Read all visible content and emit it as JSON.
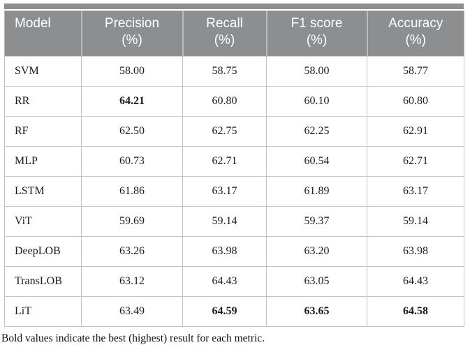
{
  "colors": {
    "header_bg": "#8c8e90",
    "header_separator": "#b9bbbd",
    "cell_border": "#c2c2c2",
    "header_text": "#ffffff",
    "body_text": "#1c1c1c"
  },
  "table": {
    "columns": [
      {
        "label": "Model",
        "unit": ""
      },
      {
        "label": "Precision",
        "unit": "(%)"
      },
      {
        "label": "Recall",
        "unit": "(%)"
      },
      {
        "label": "F1 score",
        "unit": "(%)"
      },
      {
        "label": "Accuracy",
        "unit": "(%)"
      }
    ],
    "rows": [
      {
        "model": "SVM",
        "values": [
          "58.00",
          "58.75",
          "58.00",
          "58.77"
        ],
        "bold": [
          false,
          false,
          false,
          false
        ]
      },
      {
        "model": "RR",
        "values": [
          "64.21",
          "60.80",
          "60.10",
          "60.80"
        ],
        "bold": [
          true,
          false,
          false,
          false
        ]
      },
      {
        "model": "RF",
        "values": [
          "62.50",
          "62.75",
          "62.25",
          "62.91"
        ],
        "bold": [
          false,
          false,
          false,
          false
        ]
      },
      {
        "model": "MLP",
        "values": [
          "60.73",
          "62.71",
          "60.54",
          "62.71"
        ],
        "bold": [
          false,
          false,
          false,
          false
        ]
      },
      {
        "model": "LSTM",
        "values": [
          "61.86",
          "63.17",
          "61.89",
          "63.17"
        ],
        "bold": [
          false,
          false,
          false,
          false
        ]
      },
      {
        "model": "ViT",
        "values": [
          "59.69",
          "59.14",
          "59.37",
          "59.14"
        ],
        "bold": [
          false,
          false,
          false,
          false
        ]
      },
      {
        "model": "DeepLOB",
        "values": [
          "63.26",
          "63.98",
          "63.20",
          "63.98"
        ],
        "bold": [
          false,
          false,
          false,
          false
        ]
      },
      {
        "model": "TransLOB",
        "values": [
          "63.12",
          "64.43",
          "63.05",
          "64.43"
        ],
        "bold": [
          false,
          false,
          false,
          false
        ]
      },
      {
        "model": "LiT",
        "values": [
          "63.49",
          "64.59",
          "63.65",
          "64.58"
        ],
        "bold": [
          false,
          true,
          true,
          true
        ]
      }
    ]
  },
  "footnote": "Bold values indicate the best (highest) result for each metric."
}
